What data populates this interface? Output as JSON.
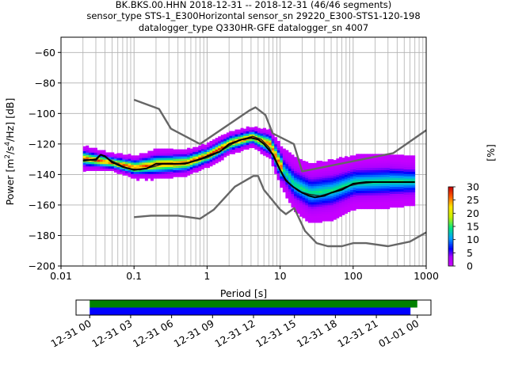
{
  "chart_data": {
    "type": "heatmap",
    "title_lines": [
      "BK.BKS.00.HHN   2018-12-31 -- 2018-12-31  (46/46 segments)",
      "sensor_type STS-1_E300Horizontal sensor_sn 29220_E300-STS1-120-198",
      "datalogger_type Q330HR-GFE datalogger_sn 4007"
    ],
    "xlabel": "Period [s]",
    "ylabel_parts": [
      "Power [m",
      "2",
      "/s",
      "4",
      "/Hz] [dB]"
    ],
    "xscale": "log",
    "xlim": [
      0.01,
      1000
    ],
    "ylim": [
      -200,
      -50
    ],
    "xticks": [
      {
        "value": 0.01,
        "label": "0.01"
      },
      {
        "value": 0.1,
        "label": "0.1"
      },
      {
        "value": 1,
        "label": "1"
      },
      {
        "value": 10,
        "label": "10"
      },
      {
        "value": 100,
        "label": "100"
      },
      {
        "value": 1000,
        "label": "1000"
      }
    ],
    "yticks": [
      -200,
      -180,
      -160,
      -140,
      -120,
      -100,
      -80,
      -60
    ],
    "grid": true,
    "noise_models": [
      {
        "name": "NHNM",
        "color": "#666666",
        "points": [
          [
            0.1,
            -91
          ],
          [
            0.22,
            -97
          ],
          [
            0.32,
            -110
          ],
          [
            0.8,
            -120
          ],
          [
            3.8,
            -98
          ],
          [
            4.6,
            -96
          ],
          [
            6.3,
            -101
          ],
          [
            7.9,
            -113
          ],
          [
            15.4,
            -120
          ],
          [
            20,
            -138
          ],
          [
            354.8,
            -126
          ],
          [
            1000,
            -111
          ]
        ]
      },
      {
        "name": "NLNM",
        "color": "#666666",
        "points": [
          [
            0.1,
            -168
          ],
          [
            0.17,
            -167
          ],
          [
            0.4,
            -167
          ],
          [
            0.8,
            -169
          ],
          [
            1.24,
            -163
          ],
          [
            2.4,
            -148
          ],
          [
            4.3,
            -141
          ],
          [
            5,
            -141
          ],
          [
            6,
            -150
          ],
          [
            10,
            -163
          ],
          [
            12,
            -166
          ],
          [
            15.6,
            -162
          ],
          [
            21.9,
            -177
          ],
          [
            31.6,
            -185
          ],
          [
            45,
            -187
          ],
          [
            70,
            -187
          ],
          [
            100,
            -185
          ],
          [
            150,
            -185
          ],
          [
            300,
            -187
          ],
          [
            600,
            -184
          ],
          [
            1000,
            -178
          ]
        ]
      }
    ],
    "mean_psd": {
      "name": "mean",
      "color": "#000000",
      "points": [
        [
          0.02,
          -131
        ],
        [
          0.03,
          -130
        ],
        [
          0.035,
          -127
        ],
        [
          0.04,
          -128
        ],
        [
          0.05,
          -132
        ],
        [
          0.07,
          -135
        ],
        [
          0.1,
          -137
        ],
        [
          0.15,
          -136
        ],
        [
          0.2,
          -133
        ],
        [
          0.3,
          -133
        ],
        [
          0.5,
          -133
        ],
        [
          0.8,
          -130
        ],
        [
          1,
          -128
        ],
        [
          1.5,
          -125
        ],
        [
          2,
          -120
        ],
        [
          3,
          -117
        ],
        [
          4,
          -116
        ],
        [
          5,
          -117
        ],
        [
          6,
          -120
        ],
        [
          8,
          -127
        ],
        [
          10,
          -137
        ],
        [
          12,
          -144
        ],
        [
          15,
          -148
        ],
        [
          20,
          -152
        ],
        [
          25,
          -154
        ],
        [
          30,
          -155
        ],
        [
          40,
          -154
        ],
        [
          50,
          -152
        ],
        [
          70,
          -150
        ],
        [
          100,
          -146
        ],
        [
          150,
          -145
        ],
        [
          200,
          -145
        ],
        [
          300,
          -145
        ],
        [
          500,
          -145
        ],
        [
          700,
          -145
        ]
      ]
    },
    "mode_psd": {
      "name": "mode",
      "color": "#222222",
      "points": [
        [
          0.02,
          -130
        ],
        [
          0.03,
          -131
        ],
        [
          0.035,
          -127
        ],
        [
          0.045,
          -130
        ],
        [
          0.06,
          -133
        ],
        [
          0.08,
          -136
        ],
        [
          0.12,
          -137
        ],
        [
          0.18,
          -135
        ],
        [
          0.25,
          -133
        ],
        [
          0.4,
          -133
        ],
        [
          0.6,
          -132
        ],
        [
          1,
          -129
        ],
        [
          1.5,
          -125
        ],
        [
          2.2,
          -120
        ],
        [
          3,
          -117
        ],
        [
          4.2,
          -115
        ],
        [
          5.5,
          -117
        ],
        [
          7,
          -122
        ],
        [
          9,
          -133
        ],
        [
          11,
          -141
        ],
        [
          14,
          -147
        ],
        [
          18,
          -151
        ],
        [
          25,
          -153
        ],
        [
          35,
          -154
        ],
        [
          50,
          -152
        ],
        [
          80,
          -148
        ],
        [
          120,
          -146
        ],
        [
          200,
          -145
        ],
        [
          400,
          -145
        ],
        [
          700,
          -145
        ]
      ]
    },
    "percentile_band": {
      "points": [
        [
          0.02,
          -130,
          8
        ],
        [
          0.05,
          -133,
          6
        ],
        [
          0.1,
          -136,
          8
        ],
        [
          0.2,
          -134,
          10
        ],
        [
          0.5,
          -133,
          9
        ],
        [
          1,
          -128,
          8
        ],
        [
          2,
          -120,
          8
        ],
        [
          4,
          -116,
          7
        ],
        [
          7,
          -121,
          10
        ],
        [
          10,
          -136,
          14
        ],
        [
          15,
          -147,
          18
        ],
        [
          25,
          -153,
          20
        ],
        [
          50,
          -151,
          20
        ],
        [
          100,
          -146,
          18
        ],
        [
          300,
          -145,
          18
        ],
        [
          700,
          -145,
          16
        ]
      ]
    },
    "colorbar": {
      "label": "[%]",
      "min": 0,
      "max": 30,
      "ticks": [
        0,
        5,
        10,
        15,
        20,
        25,
        30
      ]
    },
    "timeline": {
      "ticks": [
        "12-31 00",
        "12-31 03",
        "12-31 06",
        "12-31 09",
        "12-31 12",
        "12-31 15",
        "12-31 18",
        "12-31 21",
        "01-01 00"
      ],
      "range_hours": [
        -1,
        25
      ],
      "data_bar": {
        "start_h": 0,
        "end_h": 24,
        "color": "#008000"
      },
      "psd_bar": {
        "start_h": 0,
        "end_h": 23.5,
        "color": "#0000ff"
      }
    }
  }
}
